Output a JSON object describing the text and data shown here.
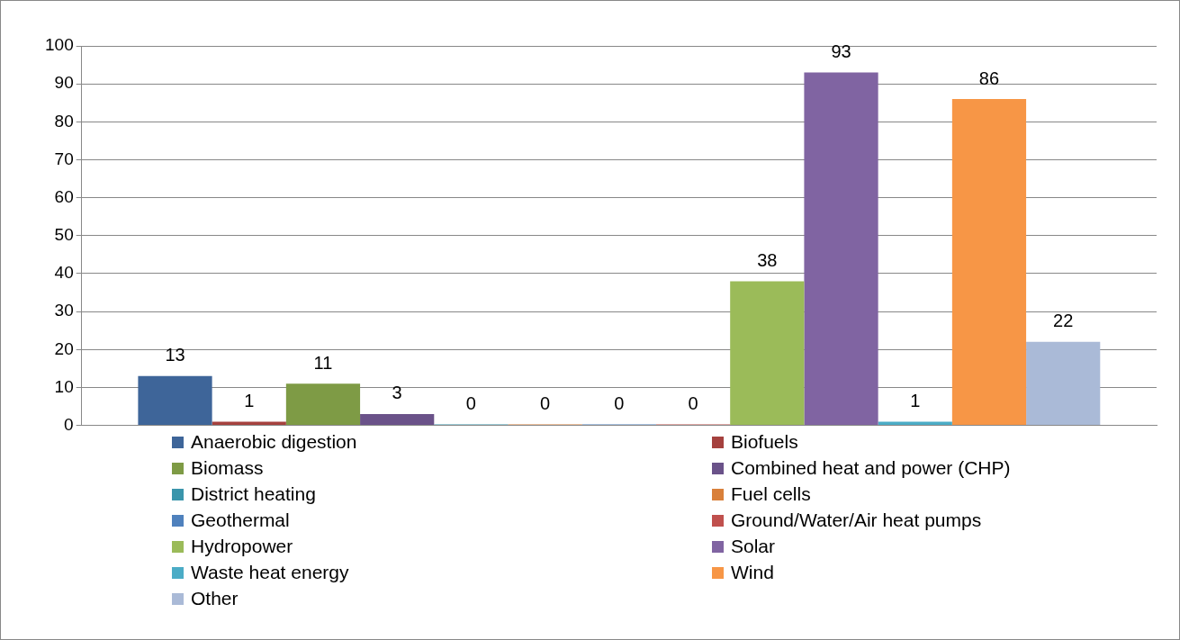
{
  "chart_data": {
    "type": "bar",
    "categories": [
      null
    ],
    "series": [
      {
        "name": "Anaerobic digestion",
        "color": "#3e6599",
        "values": [
          13
        ]
      },
      {
        "name": "Biofuels",
        "color": "#a5413e",
        "values": [
          1
        ]
      },
      {
        "name": "Biomass",
        "color": "#7e9b45",
        "values": [
          11
        ]
      },
      {
        "name": "Combined heat and power (CHP)",
        "color": "#6a5289",
        "values": [
          3
        ]
      },
      {
        "name": "District heating",
        "color": "#3a95ab",
        "values": [
          0
        ]
      },
      {
        "name": "Fuel cells",
        "color": "#d9803a",
        "values": [
          0
        ]
      },
      {
        "name": "Geothermal",
        "color": "#4f81bd",
        "values": [
          0
        ]
      },
      {
        "name": "Ground/Water/Air heat pumps",
        "color": "#c0504d",
        "values": [
          0
        ]
      },
      {
        "name": "Hydropower",
        "color": "#9bbb59",
        "values": [
          38
        ]
      },
      {
        "name": "Solar",
        "color": "#8064a2",
        "values": [
          93
        ]
      },
      {
        "name": "Waste heat energy",
        "color": "#4bacc6",
        "values": [
          1
        ]
      },
      {
        "name": "Wind",
        "color": "#f79646",
        "values": [
          86
        ]
      },
      {
        "name": "Other",
        "color": "#aabad7",
        "values": [
          22
        ]
      }
    ],
    "ylim": [
      0,
      100
    ],
    "yticks": [
      0,
      10,
      20,
      30,
      40,
      50,
      60,
      70,
      80,
      90,
      100
    ],
    "grid": "y",
    "legend": "bottom",
    "data_labels": true
  }
}
